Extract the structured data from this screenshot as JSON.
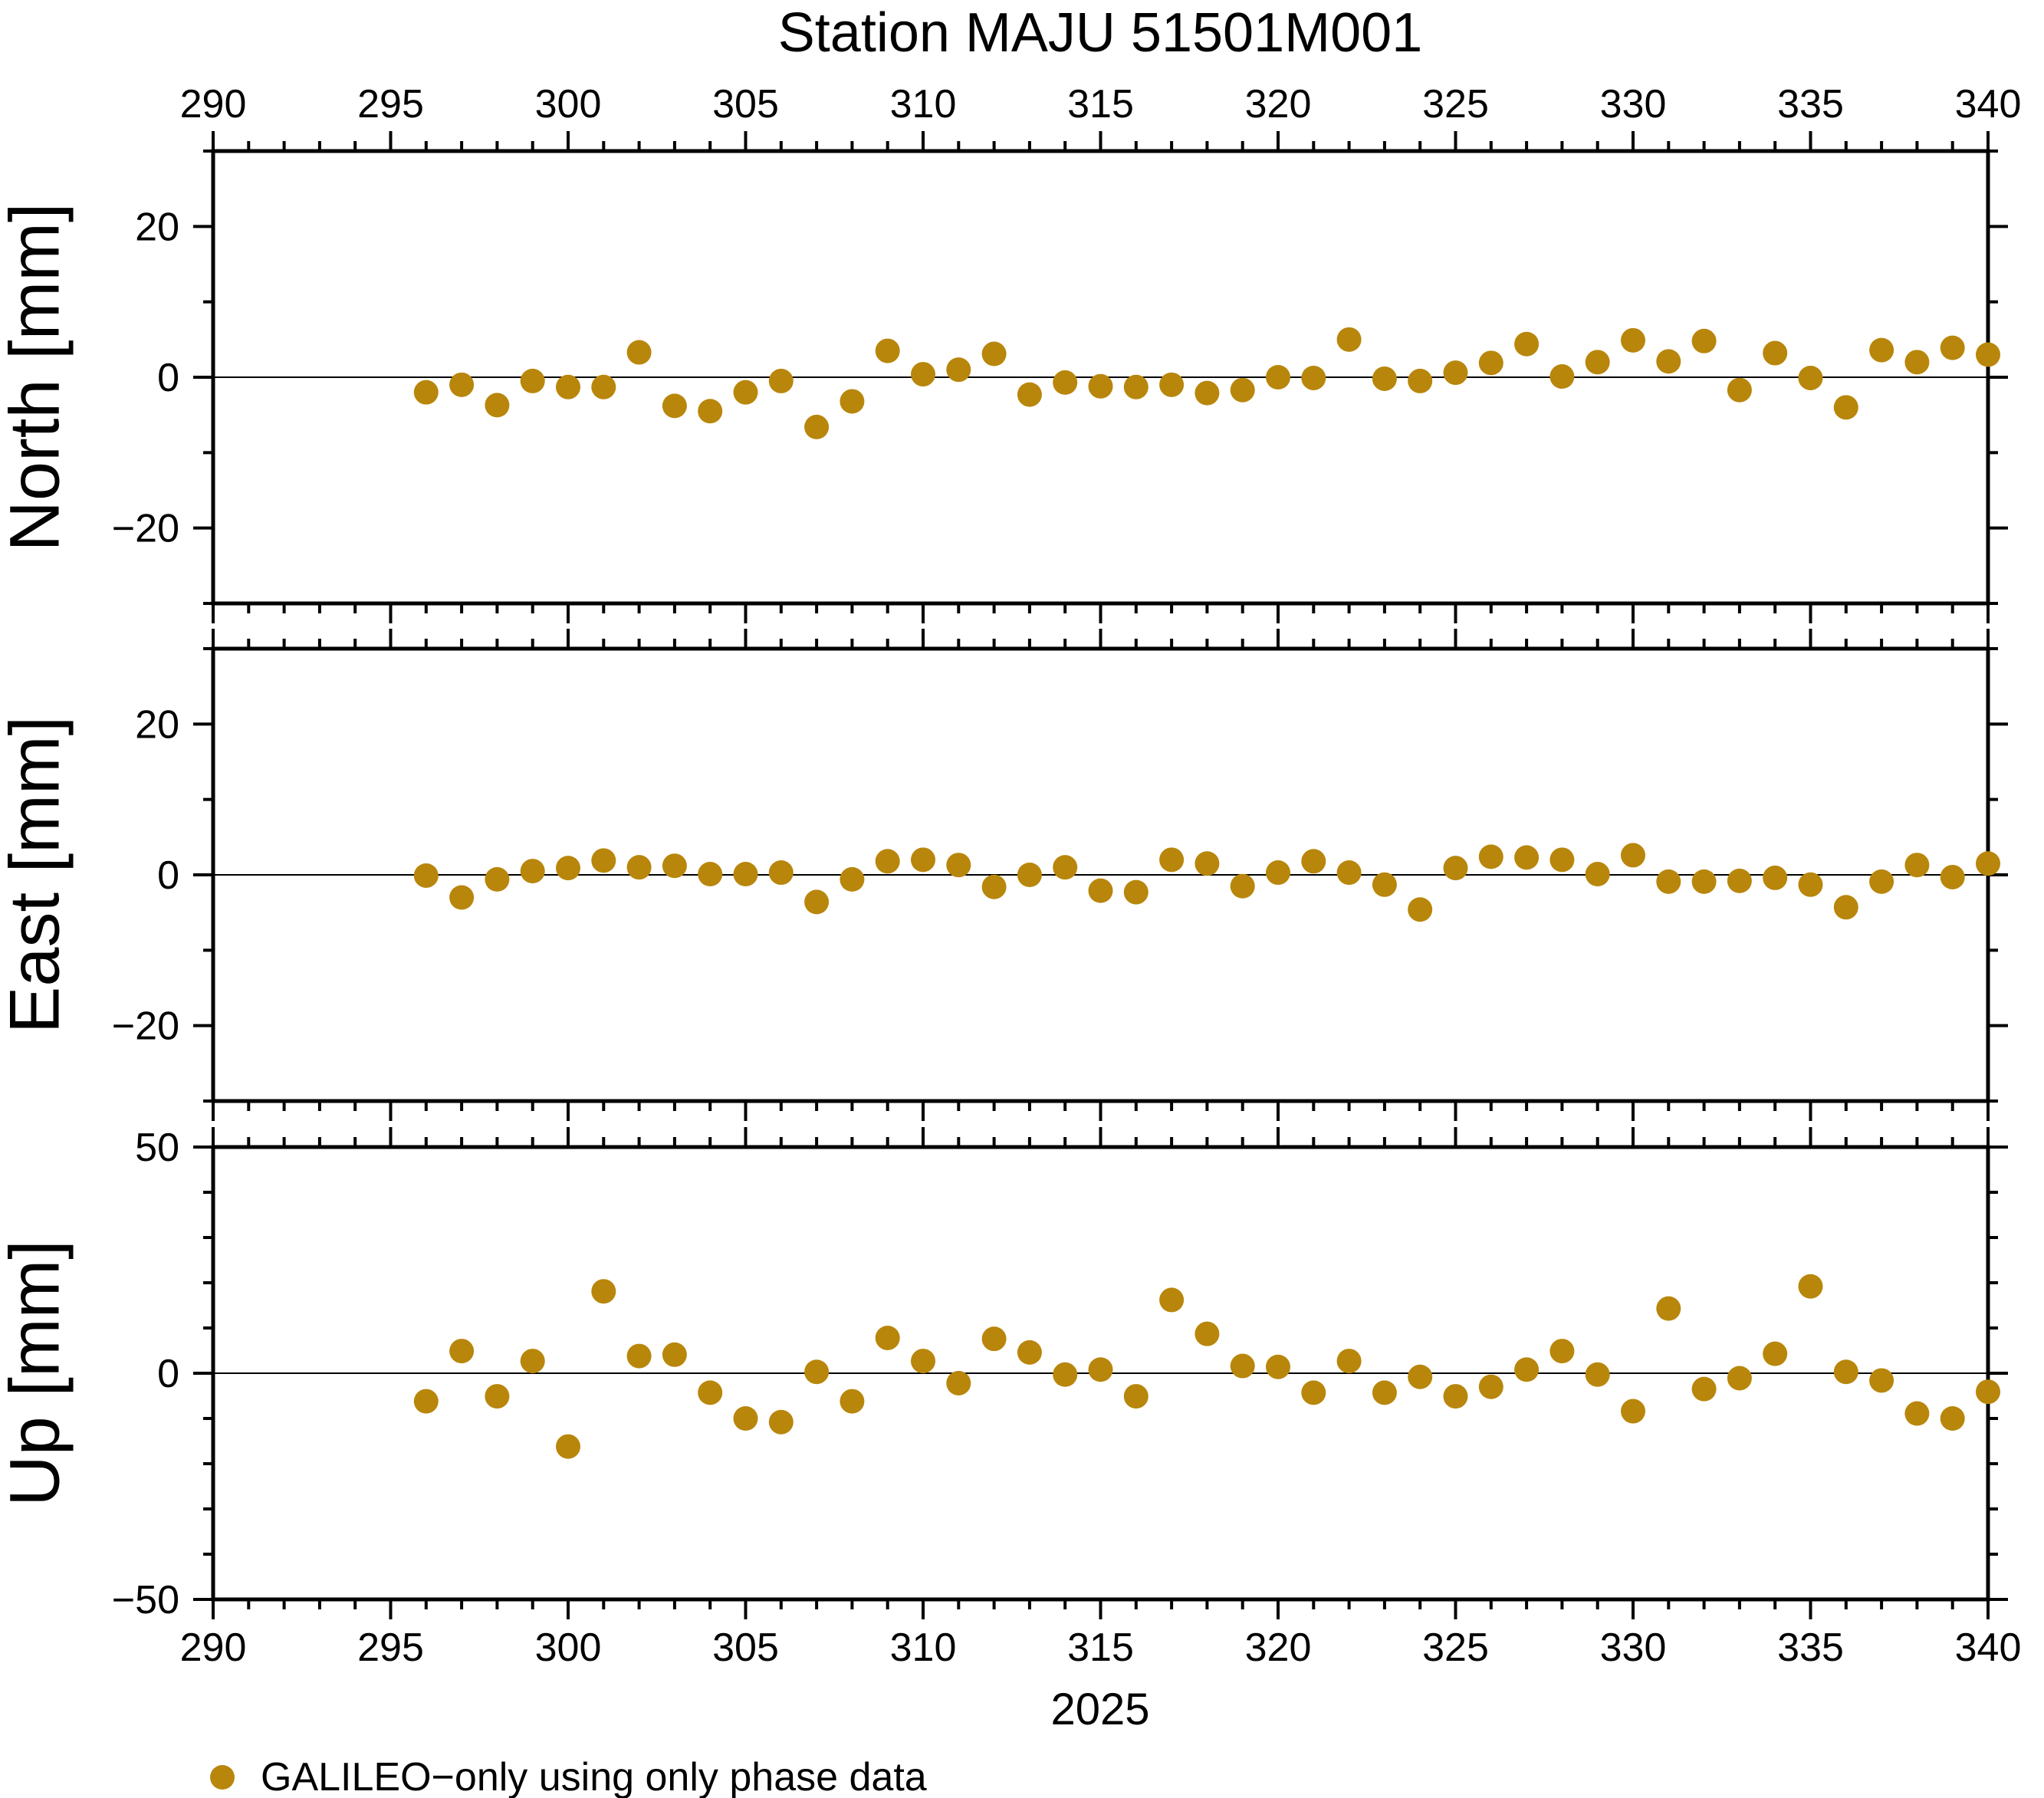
{
  "chart_data": {
    "type": "scatter",
    "title": "Station MAJU 51501M001",
    "x_axis": {
      "label": "2025",
      "range": [
        290,
        340
      ],
      "major_ticks": [
        290,
        295,
        300,
        305,
        310,
        315,
        320,
        325,
        330,
        335,
        340
      ],
      "minor_step": 1
    },
    "x": [
      296,
      297,
      298,
      299,
      300,
      301,
      302,
      303,
      304,
      305,
      306,
      307,
      308,
      309,
      310,
      311,
      312,
      313,
      314,
      315,
      316,
      317,
      318,
      319,
      320,
      321,
      322,
      323,
      324,
      325,
      326,
      327,
      328,
      329,
      330,
      331,
      332,
      333,
      334,
      335,
      336,
      337,
      338,
      339,
      340
    ],
    "panels": [
      {
        "name": "north",
        "ylabel": "North [mm]",
        "ylim": [
          -30,
          30
        ],
        "labeled_ticks": [
          -20,
          0,
          20
        ],
        "minor_step": 10,
        "zero_line": true,
        "values": [
          -2.0,
          -1.0,
          -3.7,
          -0.5,
          -1.3,
          -1.3,
          3.3,
          -3.8,
          -4.5,
          -2.0,
          -0.5,
          -6.6,
          -3.2,
          3.5,
          0.4,
          1.0,
          3.1,
          -2.3,
          -0.7,
          -1.2,
          -1.3,
          -1.0,
          -2.1,
          -1.7,
          0.0,
          -0.1,
          5.0,
          -0.2,
          -0.5,
          0.6,
          1.9,
          4.4,
          0.1,
          2.0,
          4.9,
          2.1,
          4.8,
          -1.7,
          3.2,
          -0.1,
          -4.0,
          3.6,
          2.0,
          3.9,
          3.0
        ]
      },
      {
        "name": "east",
        "ylabel": "East [mm]",
        "ylim": [
          -30,
          30
        ],
        "labeled_ticks": [
          -20,
          0,
          20
        ],
        "minor_step": 10,
        "zero_line": true,
        "values": [
          -0.1,
          -3.0,
          -0.6,
          0.5,
          0.9,
          1.9,
          1.0,
          1.2,
          0.1,
          0.1,
          0.3,
          -3.6,
          -0.6,
          1.8,
          2.0,
          1.3,
          -1.6,
          0.0,
          1.0,
          -2.1,
          -2.3,
          2.0,
          1.5,
          -1.5,
          0.3,
          1.8,
          0.3,
          -1.3,
          -4.6,
          0.9,
          2.4,
          2.3,
          2.0,
          0.1,
          2.6,
          -0.9,
          -0.9,
          -0.8,
          -0.4,
          -1.3,
          -4.3,
          -0.9,
          1.3,
          -0.3,
          1.5
        ]
      },
      {
        "name": "up",
        "ylabel": "Up [mm]",
        "ylim": [
          -50,
          50
        ],
        "labeled_ticks": [
          -50,
          0,
          50
        ],
        "minor_step": 10,
        "zero_line": true,
        "values": [
          -6.2,
          4.9,
          -5.1,
          2.7,
          -16.2,
          18.1,
          3.8,
          4.1,
          -4.3,
          -10.0,
          -10.8,
          0.3,
          -6.2,
          7.8,
          2.7,
          -2.2,
          7.6,
          4.6,
          -0.3,
          0.8,
          -5.1,
          16.2,
          8.7,
          1.6,
          1.4,
          -4.3,
          2.7,
          -4.3,
          -0.8,
          -5.1,
          -3.0,
          0.8,
          4.9,
          -0.3,
          -8.4,
          14.3,
          -3.5,
          -1.1,
          4.3,
          19.2,
          0.3,
          -1.6,
          -8.9,
          -10.0,
          -4.1
        ]
      }
    ],
    "legend": {
      "label": "GALILEO−only using only phase data"
    },
    "marker": {
      "shape": "circle",
      "color": "#B8860B"
    },
    "frame_color": "#000000",
    "grid": false,
    "legend_position": "bottom-left"
  }
}
